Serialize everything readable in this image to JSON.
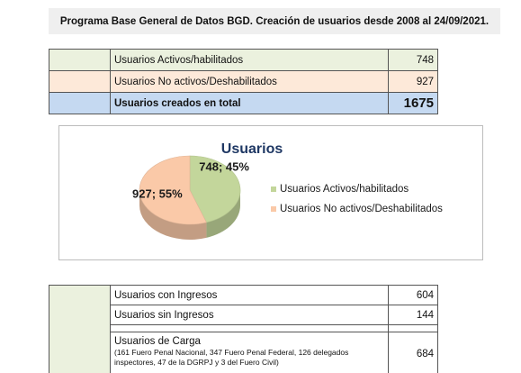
{
  "header": {
    "title": "Programa Base General de Datos BGD. Creación de usuarios desde 2008 al 24/09/2021."
  },
  "summary": {
    "rows": [
      {
        "label": "Usuarios Activos/habilitados",
        "value": "748"
      },
      {
        "label": "Usuarios No activos/Deshabilitados",
        "value": "927"
      },
      {
        "label": "Usuarios creados en total",
        "value": "1675"
      }
    ]
  },
  "chart_data": {
    "type": "pie",
    "title": "Usuarios",
    "slices": [
      {
        "name": "Usuarios Activos/habilitados",
        "value": 748,
        "percent": 45,
        "label": "748; 45%",
        "color": "#c3d69b"
      },
      {
        "name": "Usuarios No activos/Deshabilitados",
        "value": 927,
        "percent": 55,
        "label": "927; 55%",
        "color": "#fac9a8"
      }
    ],
    "legend_position": "right",
    "style": "3d"
  },
  "detail": {
    "rows": [
      {
        "label": "Usuarios con Ingresos",
        "value": "604"
      },
      {
        "label": "Usuarios sin Ingresos",
        "value": "144"
      }
    ],
    "carga": {
      "label": "Usuarios de Carga",
      "detail": "(161 Fuero Penal Nacional, 347 Fuero Penal Federal, 126 delegados inspectores, 47 de la DGRPJ  y 3 del Fuero Civil)",
      "value": "684"
    }
  }
}
